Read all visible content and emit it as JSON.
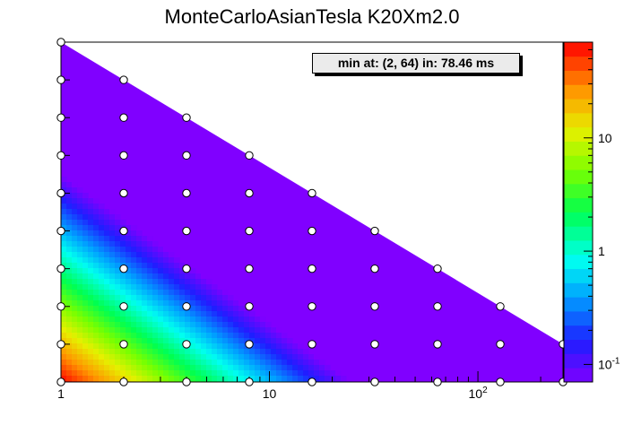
{
  "title": "MonteCarloAsianTesla K20Xm2.0",
  "annotation": "min at: (2, 64) in: 78.46 ms",
  "chart_data": {
    "type": "heatmap",
    "title": "MonteCarloAsianTesla K20Xm2.0",
    "xlabel": "",
    "ylabel": "",
    "x_scale": "log2",
    "x_range": [
      1,
      256
    ],
    "y_range": [
      1,
      10
    ],
    "x_tick_labels": [
      "1",
      "10",
      "10^2"
    ],
    "colorbar": {
      "scale": "log",
      "range": [
        0.07,
        70
      ],
      "tick_labels": [
        "10^-1",
        "1",
        "10"
      ],
      "palette": "rainbow"
    },
    "triangle_boundary": "x <= 2^(10 - y)",
    "point_rows": [
      {
        "y": 10,
        "x": [
          1
        ]
      },
      {
        "y": 9,
        "x": [
          1,
          2
        ]
      },
      {
        "y": 8,
        "x": [
          1,
          2,
          4
        ]
      },
      {
        "y": 7,
        "x": [
          1,
          2,
          4,
          8
        ]
      },
      {
        "y": 6,
        "x": [
          1,
          2,
          4,
          8,
          16
        ]
      },
      {
        "y": 5,
        "x": [
          1,
          2,
          4,
          8,
          16,
          32
        ]
      },
      {
        "y": 4,
        "x": [
          1,
          2,
          4,
          8,
          16,
          32,
          64
        ]
      },
      {
        "y": 3,
        "x": [
          1,
          2,
          4,
          8,
          16,
          32,
          64,
          128
        ]
      },
      {
        "y": 2,
        "x": [
          1,
          2,
          4,
          8,
          16,
          32,
          64,
          128,
          256
        ]
      },
      {
        "y": 1,
        "x": [
          1,
          2,
          4,
          8,
          16,
          32,
          64,
          128,
          256
        ]
      }
    ],
    "min_point": {
      "x": 2,
      "y": 64,
      "value_ms": 78.46
    },
    "colors": {
      "background_level": "#8000ff",
      "frame": "#000000",
      "marker_fill": "#ffffff"
    }
  }
}
